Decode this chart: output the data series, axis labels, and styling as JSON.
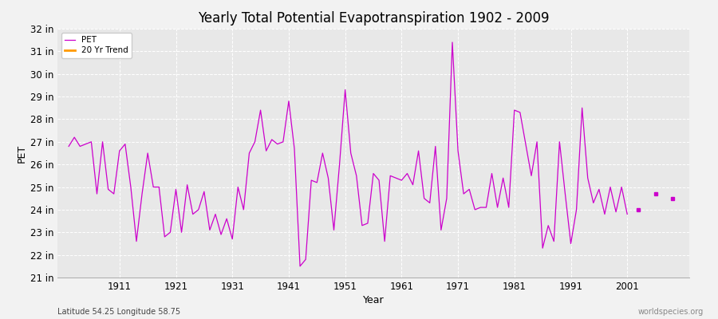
{
  "title": "Yearly Total Potential Evapotranspiration 1902 - 2009",
  "xlabel": "Year",
  "ylabel": "PET",
  "footnote_left": "Latitude 54.25 Longitude 58.75",
  "footnote_right": "worldspecies.org",
  "line_color": "#cc00cc",
  "trend_color": "#ff9900",
  "bg_color": "#f2f2f2",
  "plot_bg_color": "#e8e8e8",
  "ylim": [
    21,
    32
  ],
  "ytick_labels": [
    "21 in",
    "22 in",
    "23 in",
    "24 in",
    "25 in",
    "26 in",
    "27 in",
    "28 in",
    "29 in",
    "30 in",
    "31 in",
    "32 in"
  ],
  "ytick_values": [
    21,
    22,
    23,
    24,
    25,
    26,
    27,
    28,
    29,
    30,
    31,
    32
  ],
  "xlim": [
    1900,
    2012
  ],
  "xtick_values": [
    1911,
    1921,
    1931,
    1941,
    1951,
    1961,
    1971,
    1981,
    1991,
    2001
  ],
  "years": [
    1902,
    1903,
    1904,
    1905,
    1906,
    1907,
    1908,
    1909,
    1910,
    1911,
    1912,
    1913,
    1914,
    1915,
    1916,
    1917,
    1918,
    1919,
    1920,
    1921,
    1922,
    1923,
    1924,
    1925,
    1926,
    1927,
    1928,
    1929,
    1930,
    1931,
    1932,
    1933,
    1934,
    1935,
    1936,
    1937,
    1938,
    1939,
    1940,
    1941,
    1942,
    1943,
    1944,
    1945,
    1946,
    1947,
    1948,
    1949,
    1950,
    1951,
    1952,
    1953,
    1954,
    1955,
    1956,
    1957,
    1958,
    1959,
    1960,
    1961,
    1962,
    1963,
    1964,
    1965,
    1966,
    1967,
    1968,
    1969,
    1970,
    1971,
    1972,
    1973,
    1974,
    1975,
    1976,
    1977,
    1978,
    1979,
    1980,
    1981,
    1982,
    1983,
    1984,
    1985,
    1986,
    1987,
    1988,
    1989,
    1990,
    1991,
    1992,
    1993,
    1994,
    1995,
    1996,
    1997,
    1998,
    1999,
    2000,
    2001,
    2003,
    2006,
    2009
  ],
  "pet": [
    26.8,
    27.2,
    26.8,
    26.9,
    27.0,
    24.7,
    27.0,
    24.9,
    24.7,
    26.6,
    26.9,
    25.0,
    22.6,
    24.7,
    26.5,
    25.0,
    25.0,
    22.8,
    23.0,
    24.9,
    23.0,
    25.1,
    23.8,
    24.0,
    24.8,
    23.1,
    23.8,
    22.9,
    23.6,
    22.7,
    25.0,
    24.0,
    26.5,
    27.0,
    28.4,
    26.6,
    27.1,
    26.9,
    27.0,
    28.8,
    26.7,
    21.5,
    21.8,
    25.3,
    25.2,
    26.5,
    25.4,
    23.1,
    26.0,
    29.3,
    26.5,
    25.5,
    23.3,
    23.4,
    25.6,
    25.3,
    22.6,
    25.5,
    25.4,
    25.3,
    25.6,
    25.1,
    26.6,
    24.5,
    24.3,
    26.8,
    23.1,
    24.5,
    31.4,
    26.6,
    24.7,
    24.9,
    24.0,
    24.1,
    24.1,
    25.6,
    24.1,
    25.4,
    24.1,
    28.4,
    28.3,
    26.9,
    25.5,
    27.0,
    22.3,
    23.3,
    22.6,
    27.0,
    24.7,
    22.5,
    24.0,
    28.5,
    25.4,
    24.3,
    24.9,
    23.8,
    25.0,
    23.9,
    25.0,
    23.8,
    24.0,
    24.7,
    24.5
  ],
  "legend_pet_label": "PET",
  "legend_trend_label": "20 Yr Trend",
  "linewidth": 0.9,
  "markersize": 3
}
